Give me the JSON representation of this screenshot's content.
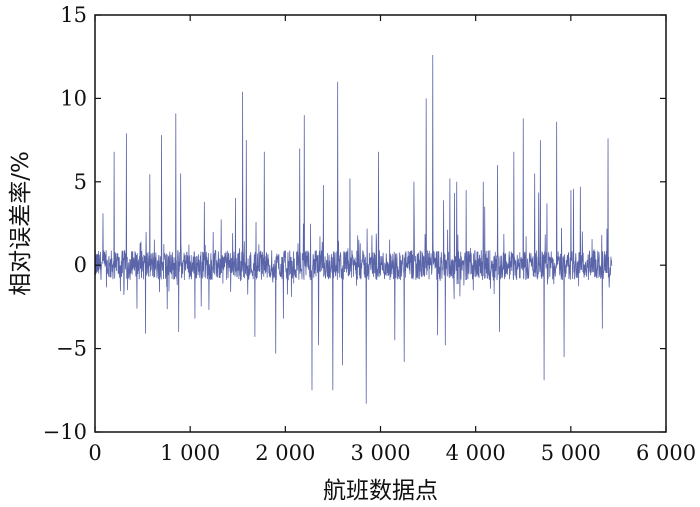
{
  "chart_data": {
    "type": "line",
    "title": "",
    "xlabel": "航班数据点",
    "ylabel": "相对误差率/%",
    "xlim": [
      0,
      6000
    ],
    "ylim": [
      -10,
      15
    ],
    "x_ticks": [
      0,
      1000,
      2000,
      3000,
      4000,
      5000,
      6000
    ],
    "x_tick_labels": [
      "0",
      "1 000",
      "2 000",
      "3 000",
      "4 000",
      "5 000",
      "6 000"
    ],
    "y_ticks": [
      -10,
      -5,
      0,
      5,
      10,
      15
    ],
    "y_tick_labels": [
      "−10",
      "−5",
      "0",
      "5",
      "10",
      "15"
    ],
    "grid": false,
    "series_color": "#5a64a8",
    "series": [
      {
        "x_start": 0,
        "x_end": 5430,
        "points_count": 5431,
        "noise_amplitude": 0.9,
        "spikes": [
          [
            200,
            6.8
          ],
          [
            330,
            7.9
          ],
          [
            440,
            -2.6
          ],
          [
            530,
            -4.1
          ],
          [
            700,
            7.8
          ],
          [
            850,
            9.1
          ],
          [
            900,
            5.5
          ],
          [
            880,
            -4.0
          ],
          [
            1050,
            -3.2
          ],
          [
            1150,
            3.8
          ],
          [
            1550,
            10.4
          ],
          [
            1590,
            7.5
          ],
          [
            1680,
            -4.3
          ],
          [
            1780,
            6.8
          ],
          [
            1900,
            -5.3
          ],
          [
            1980,
            -3.2
          ],
          [
            2150,
            7.0
          ],
          [
            2200,
            9.0
          ],
          [
            2280,
            -7.5
          ],
          [
            2350,
            -4.8
          ],
          [
            2400,
            4.8
          ],
          [
            2500,
            -7.5
          ],
          [
            2550,
            11.0
          ],
          [
            2600,
            -6.0
          ],
          [
            2680,
            5.2
          ],
          [
            2850,
            -8.3
          ],
          [
            2980,
            6.8
          ],
          [
            3150,
            -4.5
          ],
          [
            3250,
            -5.8
          ],
          [
            3350,
            5.0
          ],
          [
            3480,
            10.0
          ],
          [
            3550,
            12.6
          ],
          [
            3600,
            -4.2
          ],
          [
            3680,
            -4.8
          ],
          [
            3730,
            5.2
          ],
          [
            3800,
            5.0
          ],
          [
            3900,
            4.5
          ],
          [
            4080,
            5.0
          ],
          [
            4230,
            6.0
          ],
          [
            4250,
            -4.0
          ],
          [
            4400,
            6.8
          ],
          [
            4500,
            8.8
          ],
          [
            4620,
            5.5
          ],
          [
            4680,
            7.5
          ],
          [
            4720,
            -6.9
          ],
          [
            4850,
            8.6
          ],
          [
            4930,
            -5.5
          ],
          [
            5000,
            4.5
          ],
          [
            5100,
            4.7
          ],
          [
            5330,
            -3.8
          ],
          [
            5390,
            7.6
          ]
        ]
      }
    ]
  }
}
